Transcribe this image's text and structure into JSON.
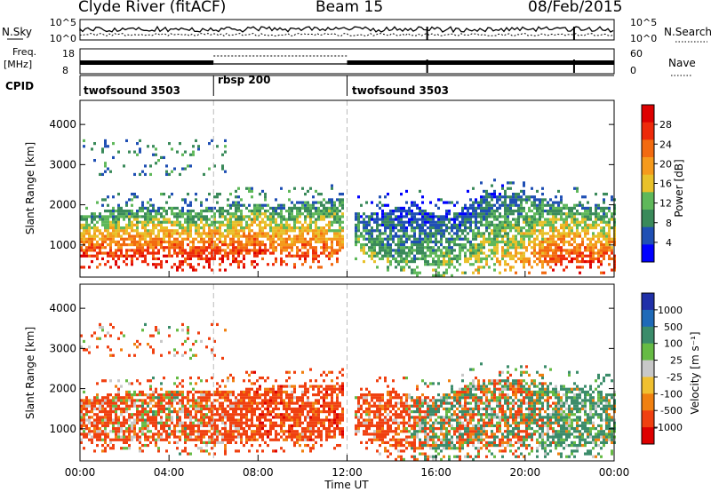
{
  "header": {
    "station": "Clyde River (fitACF)",
    "beam": "Beam 15",
    "date": "08/Feb/2015"
  },
  "left_labels": {
    "nsky": "N.Sky",
    "freq": "Freq.",
    "freq_unit": "[MHz]",
    "cpid": "CPID"
  },
  "right_labels": {
    "nsearch": "N.Search",
    "nave": "Nave"
  },
  "noise_axis": {
    "left_ticks": [
      "10^5",
      "10^0"
    ],
    "right_ticks": [
      "10^5",
      "10^0"
    ]
  },
  "freq_axis": {
    "left_ticks": [
      "18",
      "8"
    ],
    "right_ticks": [
      "60",
      "0"
    ]
  },
  "cpid_segments": [
    {
      "label": "twofsound 3503",
      "start_hour": 0,
      "end_hour": 6
    },
    {
      "label": "rbsp 200",
      "start_hour": 6,
      "end_hour": 12
    },
    {
      "label": "twofsound 3503",
      "start_hour": 12,
      "end_hour": 24
    }
  ],
  "colors": {
    "power": [
      "#0000ff",
      "#1f4fb4",
      "#3a8a5a",
      "#5fb85a",
      "#e8c12a",
      "#f59a1c",
      "#f26a10",
      "#ee2a0a",
      "#dd0000"
    ],
    "velocity": [
      "#2030a8",
      "#1f6ab8",
      "#3b8c6a",
      "#66bb44",
      "#c8c8c8",
      "#f0c030",
      "#f08010",
      "#f04010",
      "#dd0000"
    ]
  },
  "chart_data": [
    {
      "type": "heatmap",
      "panel": "power",
      "xlabel": "",
      "ylabel": "Slant Range [km]",
      "xlim": [
        0,
        24
      ],
      "ylim": [
        200,
        4600
      ],
      "y_ticks": [
        "1000",
        "2000",
        "3000",
        "4000"
      ],
      "colorbar": {
        "label": "Power [dB]",
        "ticks": [
          "4",
          "8",
          "12",
          "16",
          "20",
          "24",
          "28"
        ],
        "range": [
          0,
          30
        ]
      },
      "series": [
        {
          "x_hours": [
            0,
            1,
            2,
            3,
            4,
            5,
            6,
            7,
            8,
            9,
            10,
            11,
            11.8
          ],
          "main_band_km": [
            [
              650,
              1700
            ],
            [
              700,
              1800
            ],
            [
              650,
              1850
            ],
            [
              700,
              1900
            ],
            [
              650,
              1900
            ],
            [
              600,
              1850
            ],
            [
              600,
              1900
            ],
            [
              650,
              2000
            ],
            [
              700,
              2000
            ],
            [
              700,
              2000
            ],
            [
              650,
              2050
            ],
            [
              700,
              2100
            ],
            [
              800,
              2100
            ]
          ],
          "peak_power_db": [
            28,
            26,
            28,
            26,
            28,
            27,
            28,
            26,
            28,
            24,
            26,
            24,
            22
          ]
        },
        {
          "x_hours": [
            12.3,
            13,
            14,
            15,
            16,
            17,
            18,
            19,
            20,
            21,
            22,
            23,
            24
          ],
          "main_band_km": [
            [
              900,
              1800
            ],
            [
              650,
              1700
            ],
            [
              500,
              1900
            ],
            [
              500,
              2000
            ],
            [
              450,
              1700
            ],
            [
              500,
              1800
            ],
            [
              500,
              2200
            ],
            [
              500,
              2300
            ],
            [
              550,
              2200
            ],
            [
              550,
              2100
            ],
            [
              500,
              2000
            ],
            [
              500,
              1900
            ],
            [
              600,
              1900
            ]
          ],
          "peak_power_db": [
            14,
            12,
            10,
            10,
            12,
            12,
            14,
            16,
            20,
            24,
            28,
            26,
            24
          ]
        }
      ]
    },
    {
      "type": "heatmap",
      "panel": "velocity",
      "xlabel": "Time UT",
      "ylabel": "Slant Range [km]",
      "xlim": [
        0,
        24
      ],
      "ylim": [
        200,
        4600
      ],
      "x_ticks": [
        "00:00",
        "04:00",
        "08:00",
        "12:00",
        "16:00",
        "20:00",
        "00:00"
      ],
      "y_ticks": [
        "1000",
        "2000",
        "3000",
        "4000"
      ],
      "colorbar": {
        "label": "Velocity [m s⁻¹]",
        "ticks": [
          "1000",
          "500",
          "100",
          "25",
          "-25",
          "-100",
          "-500",
          "-1000"
        ]
      },
      "series": [
        {
          "x_hours": [
            0,
            2,
            4,
            6,
            8,
            10,
            11.8
          ],
          "main_band_km": [
            [
              650,
              1700
            ],
            [
              650,
              1850
            ],
            [
              650,
              1900
            ],
            [
              600,
              1900
            ],
            [
              700,
              2000
            ],
            [
              650,
              2050
            ],
            [
              800,
              2100
            ]
          ],
          "dominant_velocity_m_s": [
            -200,
            -150,
            -100,
            -200,
            -300,
            -250,
            -300
          ]
        },
        {
          "x_hours": [
            12.3,
            14,
            16,
            18,
            20,
            22,
            24
          ],
          "main_band_km": [
            [
              900,
              1800
            ],
            [
              500,
              1900
            ],
            [
              450,
              1700
            ],
            [
              500,
              2200
            ],
            [
              550,
              2200
            ],
            [
              500,
              2000
            ],
            [
              600,
              1900
            ]
          ],
          "dominant_velocity_m_s": [
            -200,
            -250,
            100,
            -20,
            0,
            200,
            150
          ]
        }
      ]
    }
  ]
}
